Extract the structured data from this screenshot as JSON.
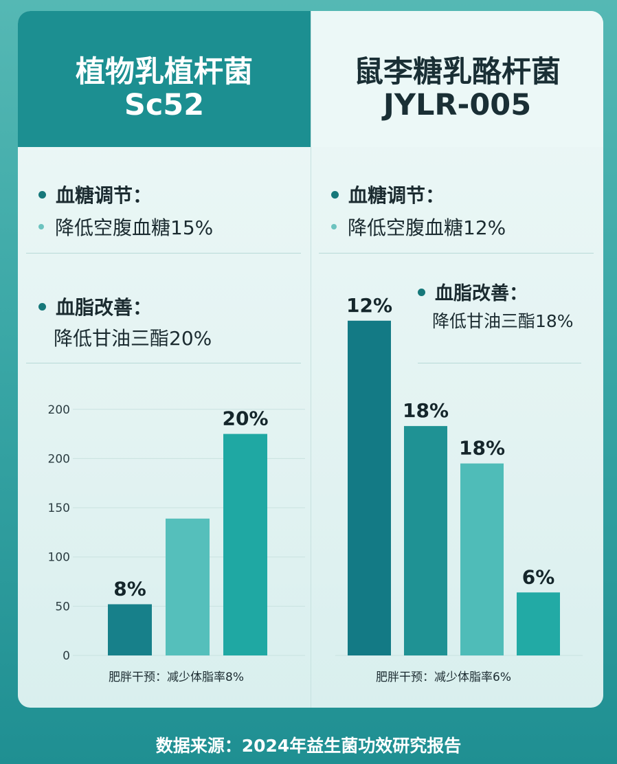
{
  "left": {
    "name": "植物乳植杆菌",
    "code": "Sc52",
    "glucose_title": "血糖调节：",
    "glucose_text": "降低空腹血糖15%",
    "lipid_title": "血脂改善：",
    "lipid_text": "降低甘油三酯20%"
  },
  "right": {
    "name": "鼠李糖乳酪杆菌",
    "code": "JYLR-005",
    "glucose_title": "血糖调节：",
    "glucose_text": "降低空腹血糖12%",
    "lipid_title": "血脂改善：",
    "lipid_text": "降低甘油三酯18%"
  },
  "source": "数据来源：2024年益生菌功效研究报告",
  "chart_data": [
    {
      "type": "bar",
      "xlabel": "肥胖干预：减少体脂率8%",
      "yticks": [
        "0",
        "50",
        "100",
        "150",
        "200",
        "200"
      ],
      "values": [
        52,
        139,
        225
      ],
      "data_labels": [
        "8%",
        "",
        "20%"
      ],
      "colors": [
        "#17808a",
        "#55bfbb",
        "#1fa8a3"
      ]
    },
    {
      "type": "bar",
      "xlabel": "肥胖干预：减少体脂率6%",
      "values": [
        340,
        233,
        195,
        64
      ],
      "data_labels": [
        "12%",
        "18%",
        "18%",
        "6%"
      ],
      "colors": [
        "#137a85",
        "#1f9294",
        "#4fbcb8",
        "#22aaa5"
      ]
    }
  ]
}
